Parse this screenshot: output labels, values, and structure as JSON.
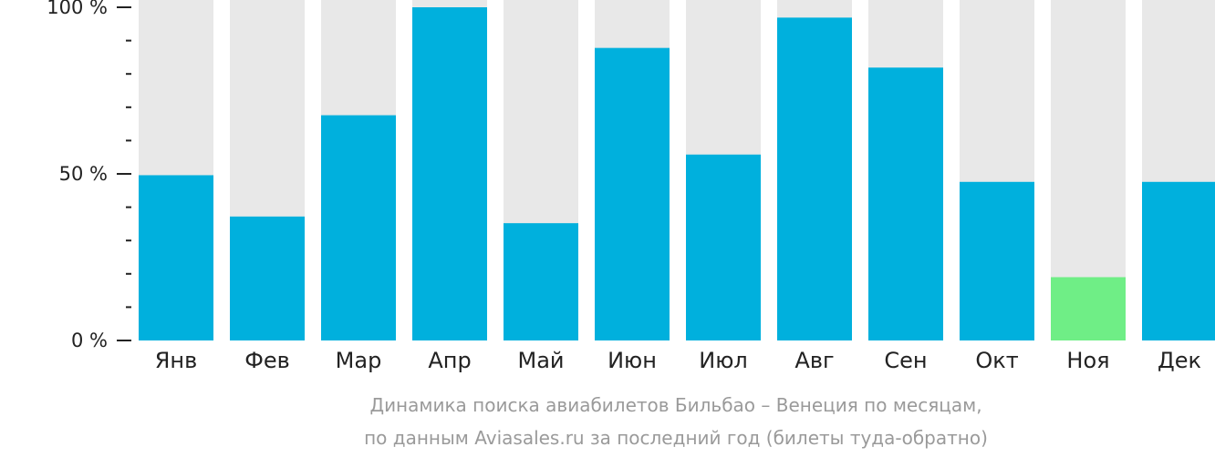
{
  "chart_data": {
    "type": "bar",
    "categories": [
      "Янв",
      "Фев",
      "Мар",
      "Апр",
      "Май",
      "Июн",
      "Июл",
      "Авг",
      "Сен",
      "Окт",
      "Ноя",
      "Дек"
    ],
    "values": [
      49.6,
      37.2,
      67.6,
      100,
      35.2,
      87.8,
      55.8,
      96.9,
      81.9,
      47.6,
      19.0,
      47.6
    ],
    "ylim": [
      0,
      100
    ],
    "y_ticks": [
      "0 %",
      "50 %",
      "100 %"
    ],
    "grid": false,
    "colors": {
      "bar": "#00b0dd",
      "highlight": "#6fee86",
      "track": "#e8e8e8",
      "axis": "#222222",
      "caption": "#9a9a9a"
    },
    "highlight_index": 10,
    "caption": [
      "Динамика поиска авиабилетов Бильбао – Венеция по месяцам,",
      "по данным Aviasales.ru за последний год (билеты туда-обратно)"
    ]
  }
}
